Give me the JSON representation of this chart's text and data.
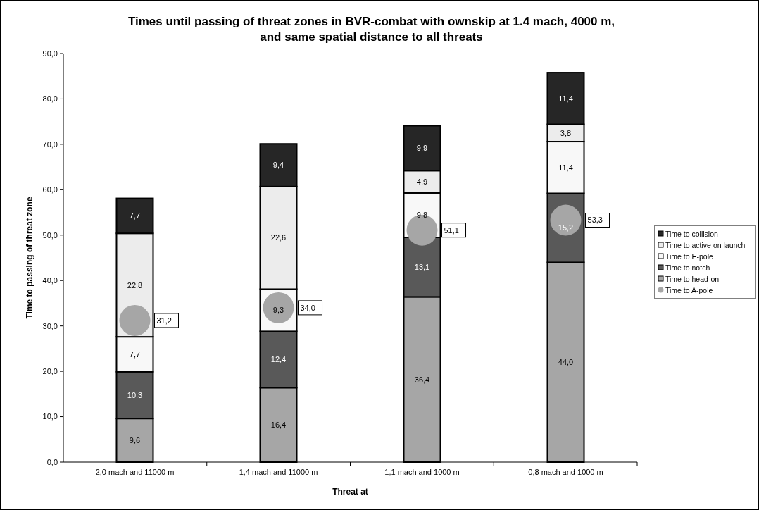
{
  "chart_data": {
    "type": "bar",
    "stacked": true,
    "title": "Times until passing of threat zones in BVR-combat with ownskip at 1.4 mach, 4000 m, and same spatial distance to all threats",
    "xlabel": "Threat at",
    "ylabel": "Time to passing of threat zone",
    "categories": [
      "2,0 mach and 11000 m",
      "1,4 mach and 11000 m",
      "1,1 mach and 1000 m",
      "0,8 mach and 1000 m"
    ],
    "ylim": [
      0,
      90
    ],
    "yticks": [
      {
        "value": 0,
        "label": "0,0"
      },
      {
        "value": 10,
        "label": "10,0"
      },
      {
        "value": 20,
        "label": "20,0"
      },
      {
        "value": 30,
        "label": "30,0"
      },
      {
        "value": 40,
        "label": "40,0"
      },
      {
        "value": 50,
        "label": "50,0"
      },
      {
        "value": 60,
        "label": "60,0"
      },
      {
        "value": 70,
        "label": "70,0"
      },
      {
        "value": 80,
        "label": "80,0"
      },
      {
        "value": 90,
        "label": "90,0"
      }
    ],
    "legend": "right",
    "series": [
      {
        "name": "Time to head-on",
        "color": "#a6a6a6",
        "values": [
          9.6,
          16.4,
          36.4,
          44.0
        ],
        "value_labels": [
          "9,6",
          "16,4",
          "36,4",
          "44,0"
        ]
      },
      {
        "name": "Time to notch",
        "color": "#595959",
        "values": [
          10.3,
          12.4,
          13.1,
          15.2
        ],
        "value_labels": [
          "10,3",
          "12,4",
          "13,1",
          "15,2"
        ]
      },
      {
        "name": "Time to E-pole",
        "color": "#f8f8f8",
        "values": [
          7.7,
          9.3,
          9.8,
          11.4
        ],
        "value_labels": [
          "7,7",
          "9,3",
          "9,8",
          "11,4"
        ]
      },
      {
        "name": "Time to active on launch",
        "color": "#ececec",
        "values": [
          22.8,
          22.6,
          4.9,
          3.8
        ],
        "value_labels": [
          "22,8",
          "22,6",
          "4,9",
          "3,8"
        ]
      },
      {
        "name": "Time to collision",
        "color": "#262626",
        "values": [
          7.7,
          9.4,
          9.9,
          11.4
        ],
        "value_labels": [
          "7,7",
          "9,4",
          "9,9",
          "11,4"
        ]
      },
      {
        "name": "Time to A-pole",
        "type": "scatter",
        "marker": "circle",
        "color": "#a6a6a6",
        "x": [
          "2,0 mach and 11000 m",
          "1,4 mach and 11000 m",
          "1,1 mach and 1000 m",
          "0,8 mach and 1000 m"
        ],
        "values": [
          31.2,
          34.0,
          51.1,
          53.3
        ],
        "value_labels": [
          "31,2",
          "34,0",
          "51,1",
          "53,3"
        ]
      }
    ]
  }
}
